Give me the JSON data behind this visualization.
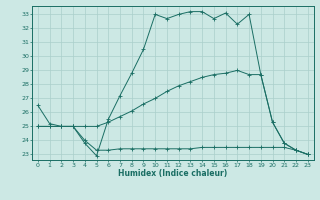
{
  "xlabel": "Humidex (Indice chaleur)",
  "bg_color": "#cce8e4",
  "line_color": "#1a6e64",
  "grid_color": "#aacfcb",
  "xlim": [
    -0.5,
    23.5
  ],
  "ylim": [
    22.6,
    33.6
  ],
  "xticks": [
    0,
    1,
    2,
    3,
    4,
    5,
    6,
    7,
    8,
    9,
    10,
    11,
    12,
    13,
    14,
    15,
    16,
    17,
    18,
    19,
    20,
    21,
    22,
    23
  ],
  "yticks": [
    23,
    24,
    25,
    26,
    27,
    28,
    29,
    30,
    31,
    32,
    33
  ],
  "line1_x": [
    0,
    1,
    2,
    3,
    4,
    5,
    6,
    7,
    8,
    9,
    10,
    11,
    12,
    13,
    14,
    15,
    16,
    17,
    18,
    19,
    20,
    21,
    22,
    23
  ],
  "line1_y": [
    26.5,
    25.2,
    25.0,
    25.0,
    23.8,
    22.9,
    25.5,
    27.2,
    28.8,
    30.5,
    33.0,
    32.7,
    33.0,
    33.2,
    33.2,
    32.7,
    33.1,
    32.3,
    33.0,
    28.7,
    25.3,
    23.8,
    23.3,
    23.0
  ],
  "line2_x": [
    0,
    1,
    2,
    3,
    4,
    5,
    6,
    7,
    8,
    9,
    10,
    11,
    12,
    13,
    14,
    15,
    16,
    17,
    18,
    19,
    20,
    21,
    22,
    23
  ],
  "line2_y": [
    25.0,
    25.0,
    25.0,
    25.0,
    25.0,
    25.0,
    25.3,
    25.7,
    26.1,
    26.6,
    27.0,
    27.5,
    27.9,
    28.2,
    28.5,
    28.7,
    28.8,
    29.0,
    28.7,
    28.7,
    25.3,
    23.8,
    23.3,
    23.0
  ],
  "line3_x": [
    0,
    1,
    2,
    3,
    4,
    5,
    6,
    7,
    8,
    9,
    10,
    11,
    12,
    13,
    14,
    15,
    16,
    17,
    18,
    19,
    20,
    21,
    22,
    23
  ],
  "line3_y": [
    25.0,
    25.0,
    25.0,
    25.0,
    24.0,
    23.3,
    23.3,
    23.4,
    23.4,
    23.4,
    23.4,
    23.4,
    23.4,
    23.4,
    23.5,
    23.5,
    23.5,
    23.5,
    23.5,
    23.5,
    23.5,
    23.5,
    23.3,
    23.0
  ]
}
